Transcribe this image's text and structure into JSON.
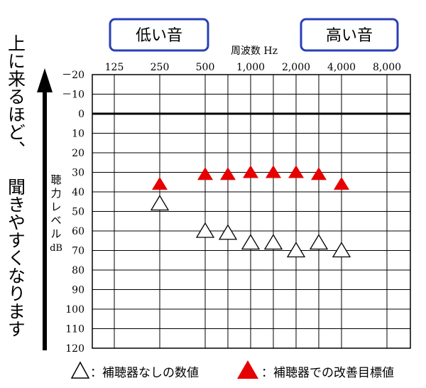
{
  "side_caption": "上に来るほど、聞きやすくなります",
  "side_caption_lines": [
    "上に来るほど、",
    "聞きやすくなります"
  ],
  "chart_data": {
    "type": "scatter",
    "title": "周波数 Hz",
    "ylabel": "聴力レベル dB",
    "ylabel_lines": [
      "聴",
      "力",
      "レ",
      "ベ",
      "ル",
      "dB"
    ],
    "y_inverted": true,
    "ylim": [
      -20,
      120
    ],
    "y_ticks": [
      "－20",
      "－10",
      "0",
      "10",
      "20",
      "30",
      "40",
      "50",
      "60",
      "70",
      "80",
      "90",
      "100",
      "110",
      "120"
    ],
    "y_tick_values": [
      -20,
      -10,
      0,
      10,
      20,
      30,
      40,
      50,
      60,
      70,
      80,
      90,
      100,
      110,
      120
    ],
    "x_scale": "log2",
    "x_ticks": [
      "125",
      "250",
      "500",
      "1,000",
      "2,000",
      "4,000",
      "8,000"
    ],
    "x_tick_values": [
      125,
      250,
      500,
      1000,
      2000,
      4000,
      8000
    ],
    "x_lines": [
      125,
      250,
      500,
      707,
      1000,
      1414,
      2000,
      2828,
      4000,
      8000
    ],
    "zero_line": 0,
    "range_labels": {
      "low": "低い音",
      "high": "高い音"
    },
    "series": [
      {
        "name": "補聴器なしの数値",
        "marker": "triangle-open",
        "color": "#000000",
        "x": [
          250,
          500,
          707,
          1000,
          1414,
          2000,
          2828,
          4000
        ],
        "y": [
          46,
          60,
          61,
          66,
          66,
          70,
          66,
          70
        ]
      },
      {
        "name": "補聴器での改善目標値",
        "marker": "triangle-filled",
        "color": "#e60000",
        "x": [
          250,
          500,
          707,
          1000,
          1414,
          2000,
          2828,
          4000
        ],
        "y": [
          36,
          31,
          31,
          30,
          30,
          30,
          31,
          36
        ]
      }
    ],
    "legend": {
      "placement": "bottom",
      "entries": [
        {
          "text": "：補聴器なしの数値",
          "marker": "triangle-open"
        },
        {
          "text": "：補聴器での改善目標値",
          "marker": "triangle-filled"
        }
      ]
    },
    "colors": {
      "box_border": "#2a3fb5",
      "target": "#e60000",
      "grid": "#000000"
    }
  }
}
